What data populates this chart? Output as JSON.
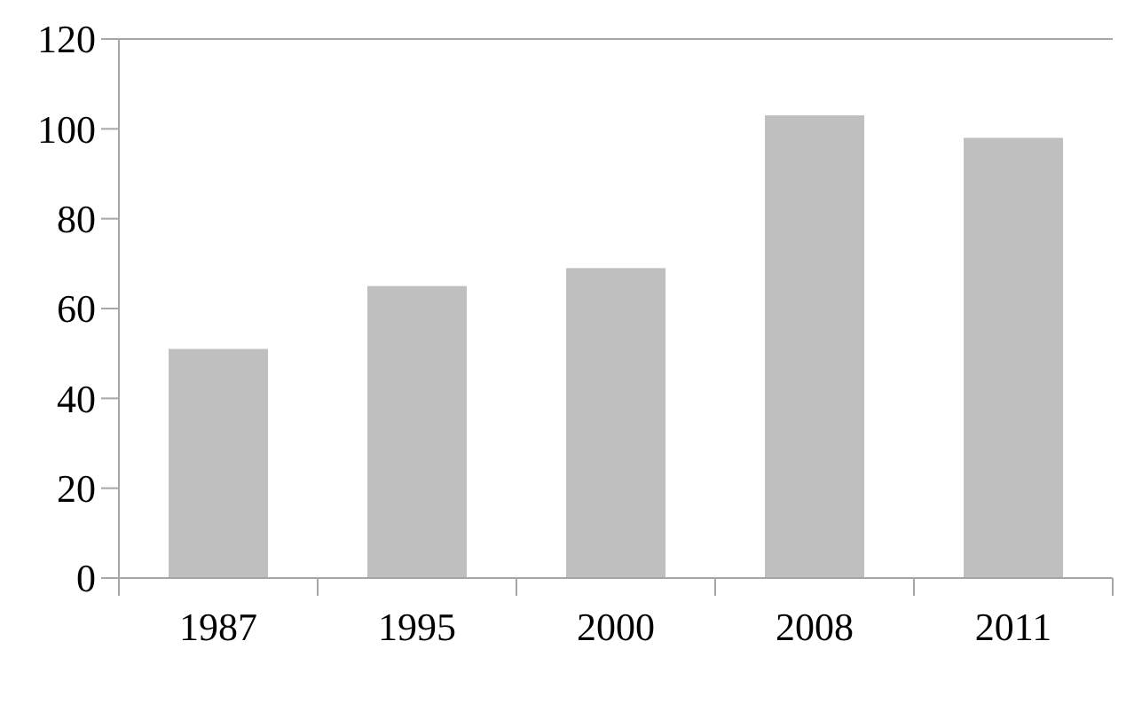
{
  "chart_data": {
    "type": "bar",
    "categories": [
      "1987",
      "1995",
      "2000",
      "2008",
      "2011"
    ],
    "values": [
      51,
      65,
      69,
      103,
      98
    ],
    "color": "#bfbfbf",
    "ylim": [
      0,
      120
    ],
    "yticks": [
      0,
      20,
      40,
      60,
      80,
      100,
      120
    ],
    "grid": false
  }
}
